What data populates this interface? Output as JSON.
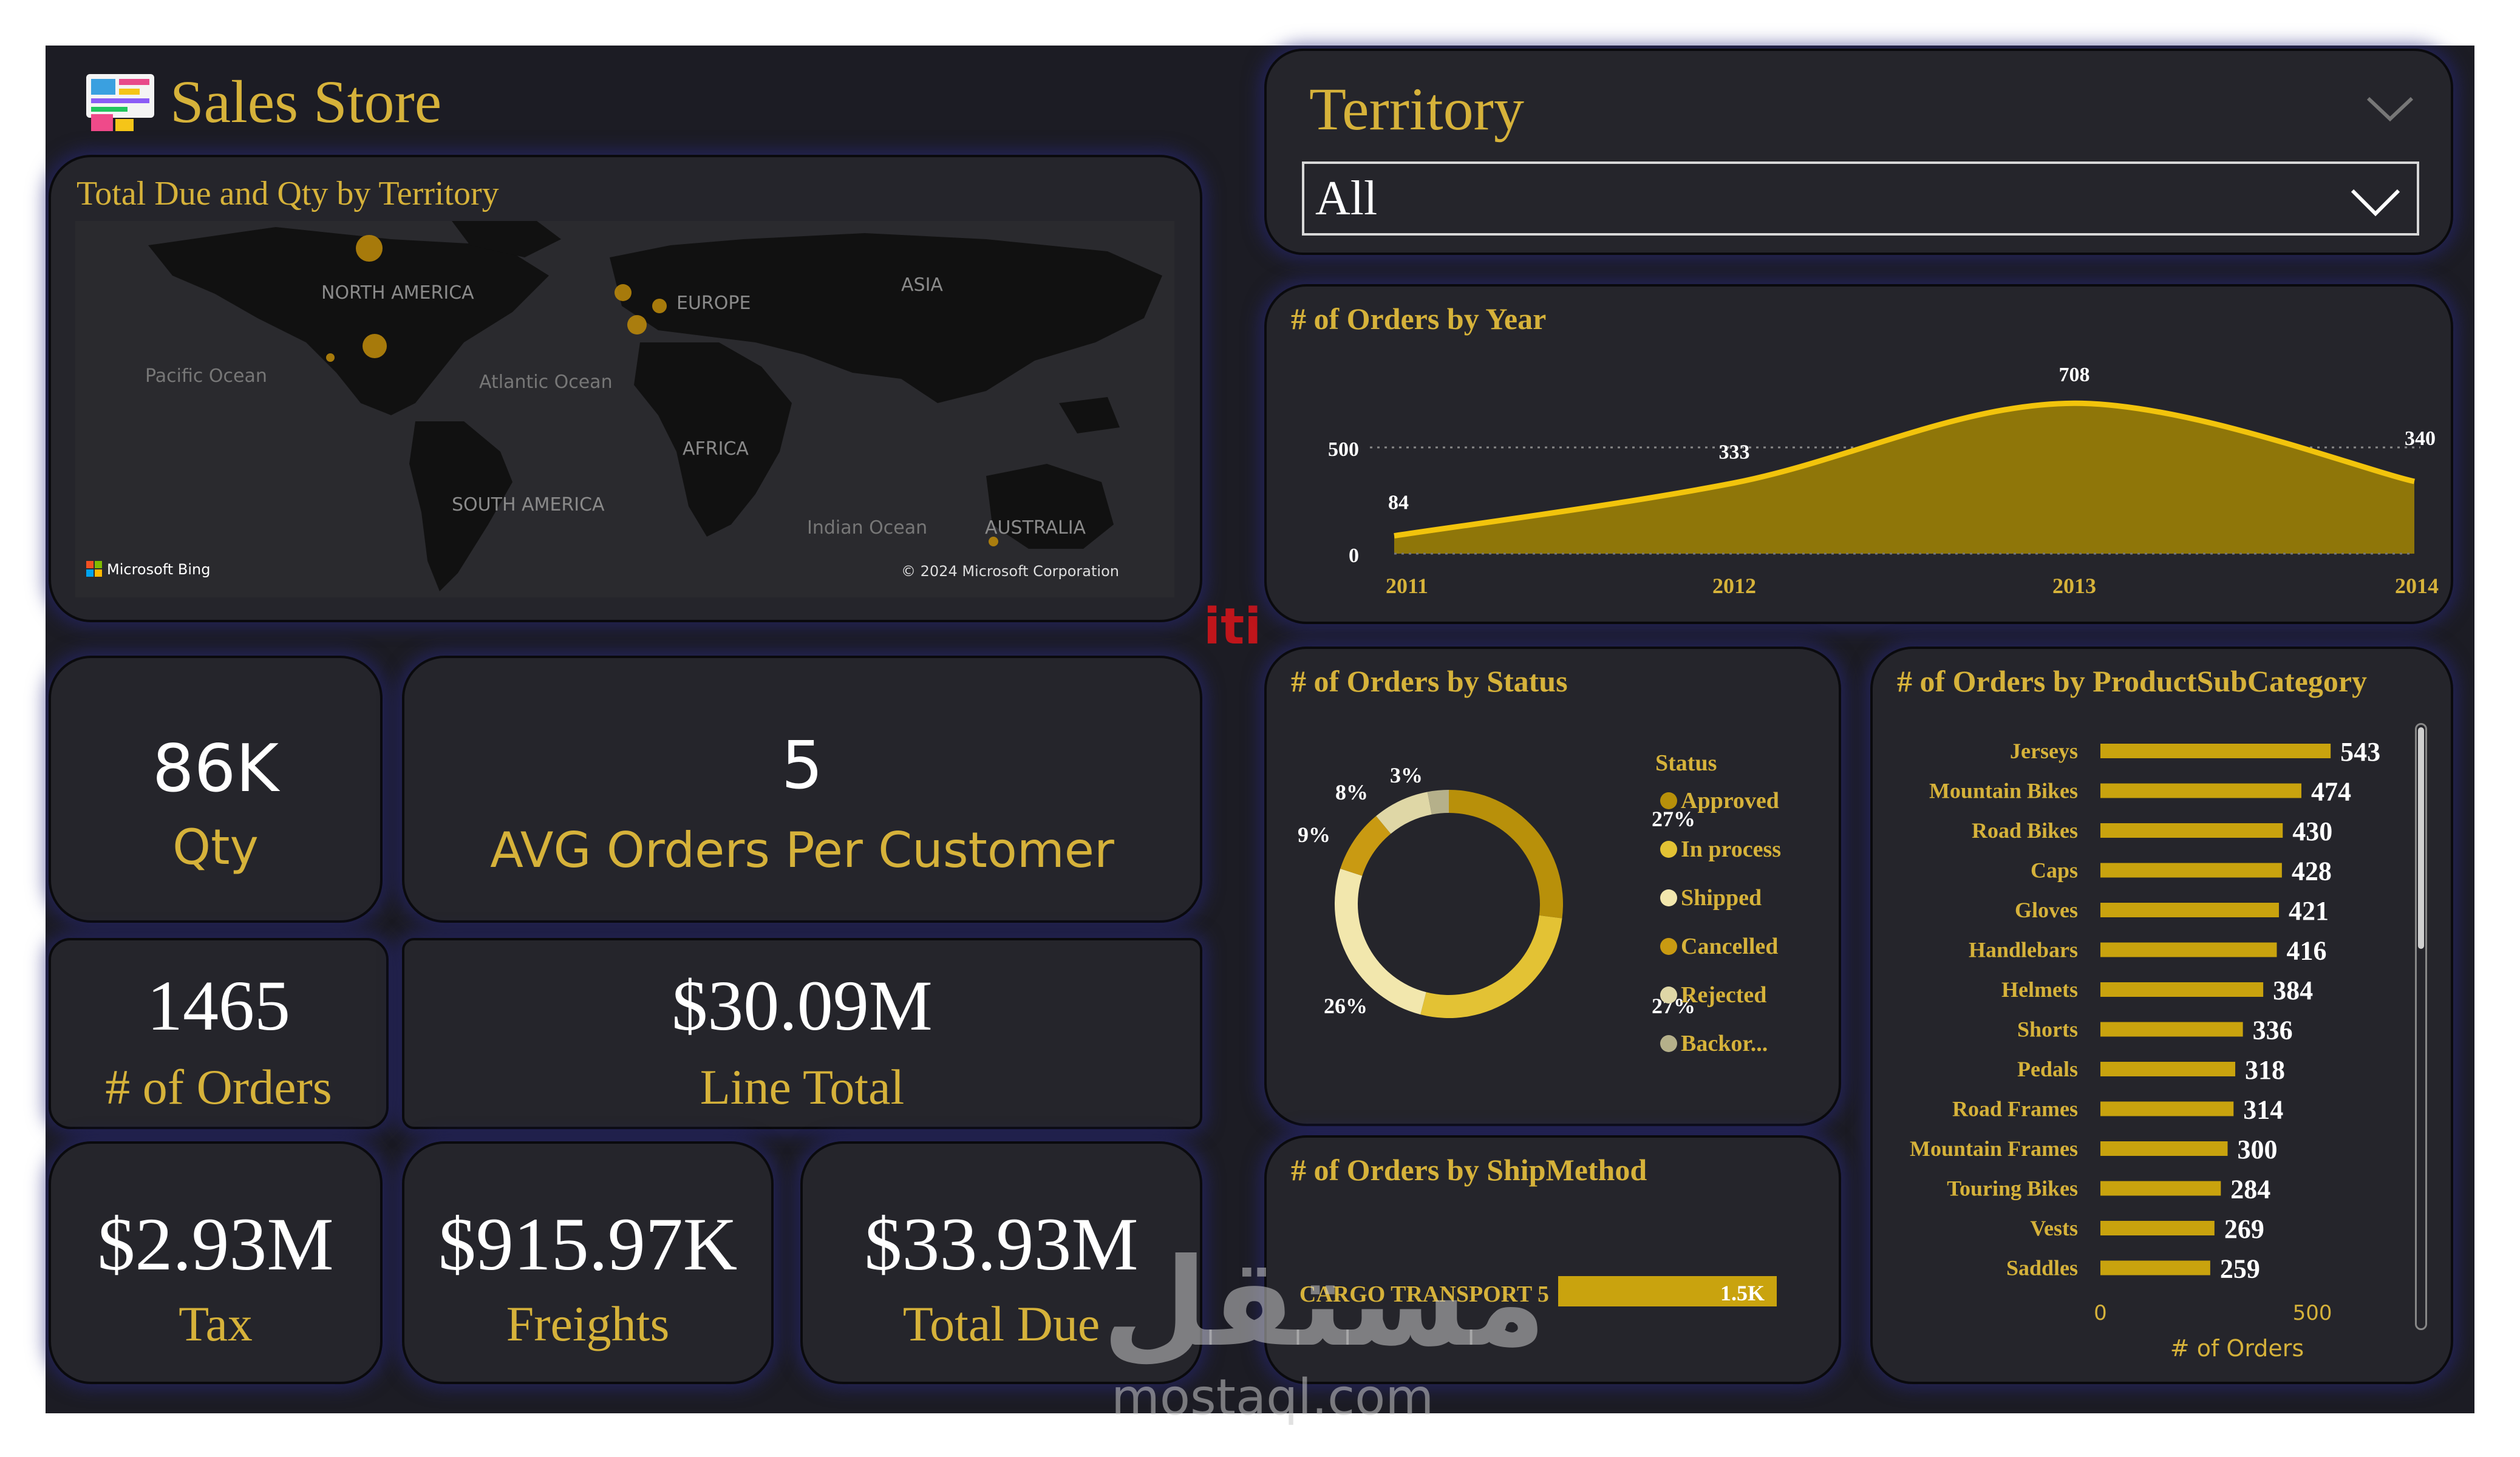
{
  "header": {
    "title": "Sales Store",
    "logo_icon": "dashboard-icon"
  },
  "map": {
    "title": "Total Due and Qty by Territory",
    "labels": {
      "north_america": "NORTH AMERICA",
      "europe": "EUROPE",
      "asia": "ASIA",
      "pacific": "Pacific Ocean",
      "atlantic": "Atlantic Ocean",
      "africa": "AFRICA",
      "south_america": "SOUTH AMERICA",
      "indian": "Indian Ocean",
      "australia": "AUSTRALIA"
    },
    "bing": "Microsoft Bing",
    "copyright": "© 2024 Microsoft Corporation",
    "bubble_color": "#b8860b"
  },
  "kpis": {
    "qty": {
      "value": "86K",
      "label": "Qty"
    },
    "avg_orders": {
      "value": "5",
      "label": "AVG Orders Per Customer"
    },
    "orders": {
      "value": "1465",
      "label": "# of Orders"
    },
    "line_total": {
      "value": "$30.09M",
      "label": "Line Total"
    },
    "tax": {
      "value": "$2.93M",
      "label": "Tax"
    },
    "freights": {
      "value": "$915.97K",
      "label": "Freights"
    },
    "total_due": {
      "value": "$33.93M",
      "label": "Total Due"
    }
  },
  "slicer": {
    "title": "Territory",
    "selected": "All"
  },
  "watermark": {
    "arabic": "مستقل",
    "latin": "mostaql.com",
    "badge": "iti"
  },
  "colors": {
    "accent": "#d6b23a",
    "bar": "#c9a30e",
    "area": "#8f7609",
    "line": "#f2c40c",
    "background": "#1c1c24",
    "card": "#25252b"
  },
  "chart_data": [
    {
      "id": "orders_by_year",
      "type": "area",
      "title": "# of Orders by Year",
      "x": [
        "2011",
        "2012",
        "2013",
        "2014"
      ],
      "values": [
        84,
        333,
        708,
        340
      ],
      "y_ticks": [
        "0",
        "500"
      ],
      "ylim": [
        0,
        800
      ]
    },
    {
      "id": "orders_by_status",
      "type": "pie",
      "title": "# of Orders by Status",
      "legend_title": "Status",
      "legend": [
        "Approved",
        "In process",
        "Shipped",
        "Cancelled",
        "Rejected",
        "Backor..."
      ],
      "slices": [
        {
          "name": "Approved",
          "label": "27%",
          "value": 27,
          "color": "#b8900a"
        },
        {
          "name": "In process",
          "label": "27%",
          "value": 27,
          "color": "#e3c234"
        },
        {
          "name": "Shipped",
          "label": "26%",
          "value": 26,
          "color": "#f2e7ad"
        },
        {
          "name": "Cancelled",
          "label": "9%",
          "value": 9,
          "color": "#c99a12"
        },
        {
          "name": "Rejected",
          "label": "8%",
          "value": 8,
          "color": "#dfd7a6"
        },
        {
          "name": "Backor...",
          "label": "3%",
          "value": 3,
          "color": "#b5b08a"
        }
      ]
    },
    {
      "id": "orders_by_shipmethod",
      "type": "bar",
      "title": "# of Orders by ShipMethod",
      "categories": [
        "CARGO TRANSPORT 5"
      ],
      "values": [
        1465
      ],
      "data_labels": [
        "1.5K"
      ]
    },
    {
      "id": "orders_by_productsubcategory",
      "type": "bar",
      "title": "# of Orders by ProductSubCategory",
      "categories": [
        "Jerseys",
        "Mountain Bikes",
        "Road Bikes",
        "Caps",
        "Gloves",
        "Handlebars",
        "Helmets",
        "Shorts",
        "Pedals",
        "Road Frames",
        "Mountain Frames",
        "Touring Bikes",
        "Vests",
        "Saddles"
      ],
      "values": [
        543,
        474,
        430,
        428,
        421,
        416,
        384,
        336,
        318,
        314,
        300,
        284,
        269,
        259
      ],
      "x_ticks": [
        "0",
        "500"
      ],
      "xlabel": "# of Orders",
      "xlim": [
        0,
        580
      ]
    }
  ]
}
